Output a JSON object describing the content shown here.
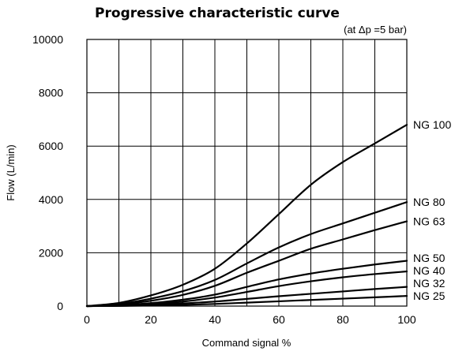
{
  "chart_data": {
    "type": "line",
    "title": "Progressive characteristic curve",
    "subtitle": "(at Δp =5 bar)",
    "xlabel": "Command signal  %",
    "ylabel": "Flow (L/min)",
    "xlim": [
      0,
      100
    ],
    "ylim": [
      0,
      10000
    ],
    "x_ticks": [
      "0",
      "20",
      "40",
      "60",
      "80",
      "100"
    ],
    "y_ticks": [
      "0",
      "2000",
      "4000",
      "6000",
      "8000",
      "10000"
    ],
    "grid": true,
    "x": [
      0,
      10,
      20,
      30,
      40,
      50,
      60,
      70,
      80,
      90,
      100
    ],
    "series": [
      {
        "name": "NG 100",
        "values": [
          0,
          120,
          400,
          800,
          1400,
          2350,
          3450,
          4550,
          5400,
          6100,
          6800
        ]
      },
      {
        "name": "NG 80",
        "values": [
          0,
          80,
          280,
          560,
          980,
          1600,
          2200,
          2700,
          3100,
          3500,
          3900
        ]
      },
      {
        "name": "NG 63",
        "values": [
          0,
          60,
          200,
          420,
          760,
          1250,
          1700,
          2150,
          2500,
          2850,
          3180
        ]
      },
      {
        "name": "NG 50",
        "values": [
          0,
          30,
          110,
          240,
          430,
          720,
          1000,
          1220,
          1400,
          1560,
          1700
        ]
      },
      {
        "name": "NG 40",
        "values": [
          0,
          20,
          80,
          170,
          320,
          530,
          750,
          930,
          1080,
          1200,
          1300
        ]
      },
      {
        "name": "NG 32",
        "values": [
          0,
          10,
          45,
          100,
          170,
          270,
          370,
          460,
          550,
          640,
          720
        ]
      },
      {
        "name": "NG 25",
        "values": [
          0,
          5,
          20,
          45,
          80,
          130,
          180,
          230,
          280,
          330,
          380
        ]
      }
    ]
  }
}
